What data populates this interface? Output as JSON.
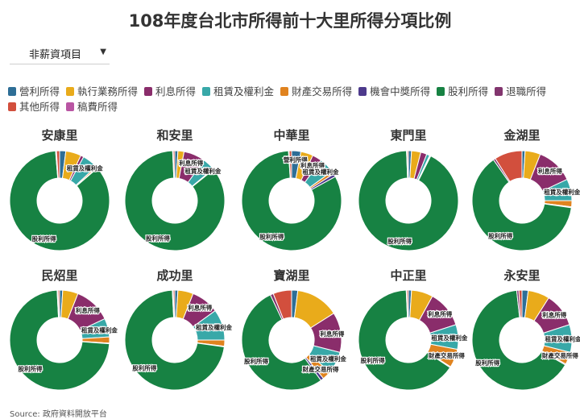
{
  "title": "108年度台北市所得前十大里所得分項比例",
  "dropdown": {
    "selected": "非薪資項目"
  },
  "source": "Source: 政府資料開放平台",
  "chart_data": {
    "type": "donut",
    "categories": [
      "營利所得",
      "執行業務所得",
      "利息所得",
      "租賃及權利金",
      "財產交易所得",
      "機會中獎所得",
      "股利所得",
      "退職所得",
      "其他所得",
      "稿費所得"
    ],
    "colors": [
      "#2e6e96",
      "#e9ab1b",
      "#8a2d6b",
      "#38a8a8",
      "#e0831f",
      "#4d3a8c",
      "#178243",
      "#82356e",
      "#d24f3d",
      "#b955a3"
    ],
    "legend_position": "top",
    "label_threshold": 0.03,
    "charts": [
      {
        "name": "安康里",
        "values": [
          0.02,
          0.05,
          0.01,
          0.05,
          0.005,
          0.002,
          0.85,
          0.003,
          0.01,
          0.0
        ]
      },
      {
        "name": "和安里",
        "values": [
          0.01,
          0.02,
          0.07,
          0.04,
          0.003,
          0.0,
          0.85,
          0.002,
          0.005,
          0.0
        ]
      },
      {
        "name": "中華里",
        "values": [
          0.03,
          0.04,
          0.03,
          0.05,
          0.01,
          0.01,
          0.82,
          0.002,
          0.008,
          0.0
        ]
      },
      {
        "name": "東門里",
        "values": [
          0.01,
          0.03,
          0.02,
          0.01,
          0.002,
          0.002,
          0.92,
          0.002,
          0.004,
          0.0
        ]
      },
      {
        "name": "金湖里",
        "values": [
          0.01,
          0.05,
          0.12,
          0.07,
          0.02,
          0.003,
          0.63,
          0.007,
          0.09,
          0.0
        ]
      },
      {
        "name": "民炤里",
        "values": [
          0.01,
          0.05,
          0.12,
          0.06,
          0.02,
          0.002,
          0.73,
          0.003,
          0.005,
          0.0
        ]
      },
      {
        "name": "成功里",
        "values": [
          0.01,
          0.05,
          0.09,
          0.1,
          0.02,
          0.002,
          0.72,
          0.003,
          0.005,
          0.0
        ]
      },
      {
        "name": "寶湖里",
        "values": [
          0.02,
          0.14,
          0.13,
          0.07,
          0.03,
          0.01,
          0.53,
          0.01,
          0.06,
          0.0
        ]
      },
      {
        "name": "中正里",
        "values": [
          0.01,
          0.07,
          0.12,
          0.08,
          0.06,
          0.003,
          0.65,
          0.002,
          0.005,
          0.0
        ]
      },
      {
        "name": "永安里",
        "values": [
          0.02,
          0.07,
          0.11,
          0.09,
          0.04,
          0.003,
          0.65,
          0.007,
          0.01,
          0.0
        ]
      }
    ]
  }
}
